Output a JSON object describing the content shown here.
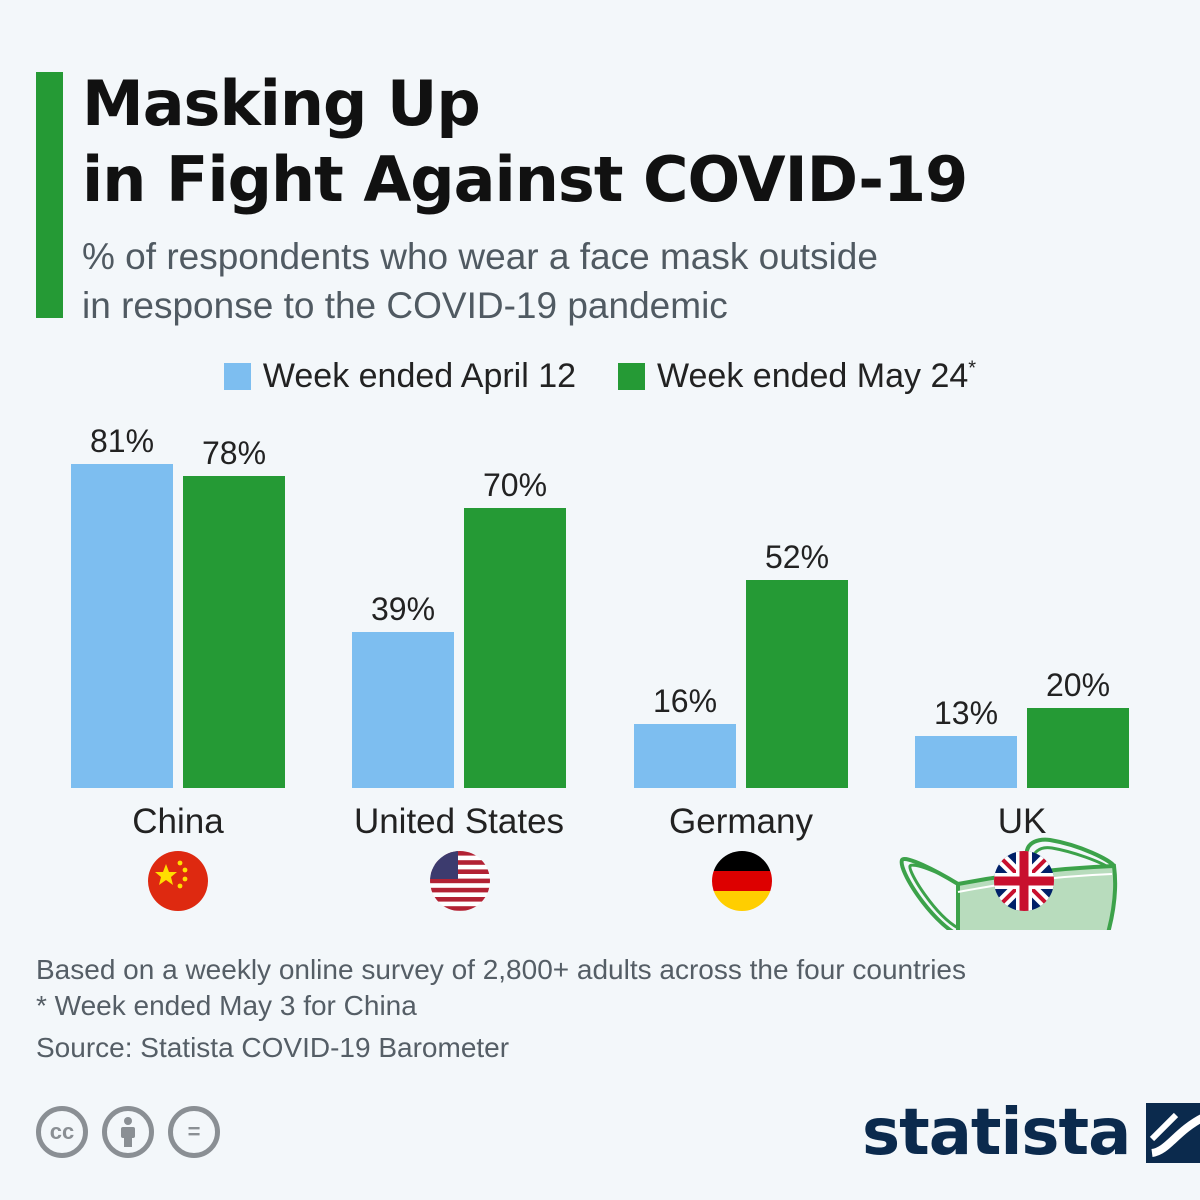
{
  "title": {
    "line1": "Masking Up",
    "line2": "in Fight Against COVID-19"
  },
  "subtitle": {
    "line1": "% of respondents who wear a face mask outside",
    "line2": "in response to the COVID-19 pandemic"
  },
  "legend": {
    "series1": "Week ended April 12",
    "series2": "Week ended May 24",
    "series2_mark": "*"
  },
  "colors": {
    "accent": "#259a35",
    "series1": "#7dbef0",
    "series2": "#259a35",
    "brand": "#0b2a4d"
  },
  "chart_data": {
    "type": "bar",
    "categories": [
      "China",
      "United States",
      "Germany",
      "UK"
    ],
    "series": [
      {
        "name": "Week ended April 12",
        "values": [
          81,
          39,
          16,
          13
        ],
        "labels": [
          "81%",
          "39%",
          "16%",
          "13%"
        ],
        "color": "#7dbef0"
      },
      {
        "name": "Week ended May 24*",
        "values": [
          78,
          70,
          52,
          20
        ],
        "labels": [
          "78%",
          "70%",
          "52%",
          "20%"
        ],
        "color": "#259a35"
      }
    ],
    "ylim": [
      0,
      100
    ],
    "grid": false,
    "legend_position": "top-center",
    "decorations": [
      "flag-china-icon",
      "flag-usa-icon",
      "flag-germany-icon",
      "flag-uk-icon",
      "face-mask-illustration"
    ]
  },
  "footer": {
    "note1": "Based on a weekly online survey of 2,800+ adults across the four countries",
    "note2": "* Week ended May 3 for China",
    "source": "Source: Statista COVID-19 Barometer"
  },
  "license_icons": [
    "cc-icon",
    "attribution-icon",
    "no-derivatives-icon"
  ],
  "license_glyphs": {
    "cc": "cc",
    "nd": "="
  },
  "brand": {
    "name": "statista"
  }
}
